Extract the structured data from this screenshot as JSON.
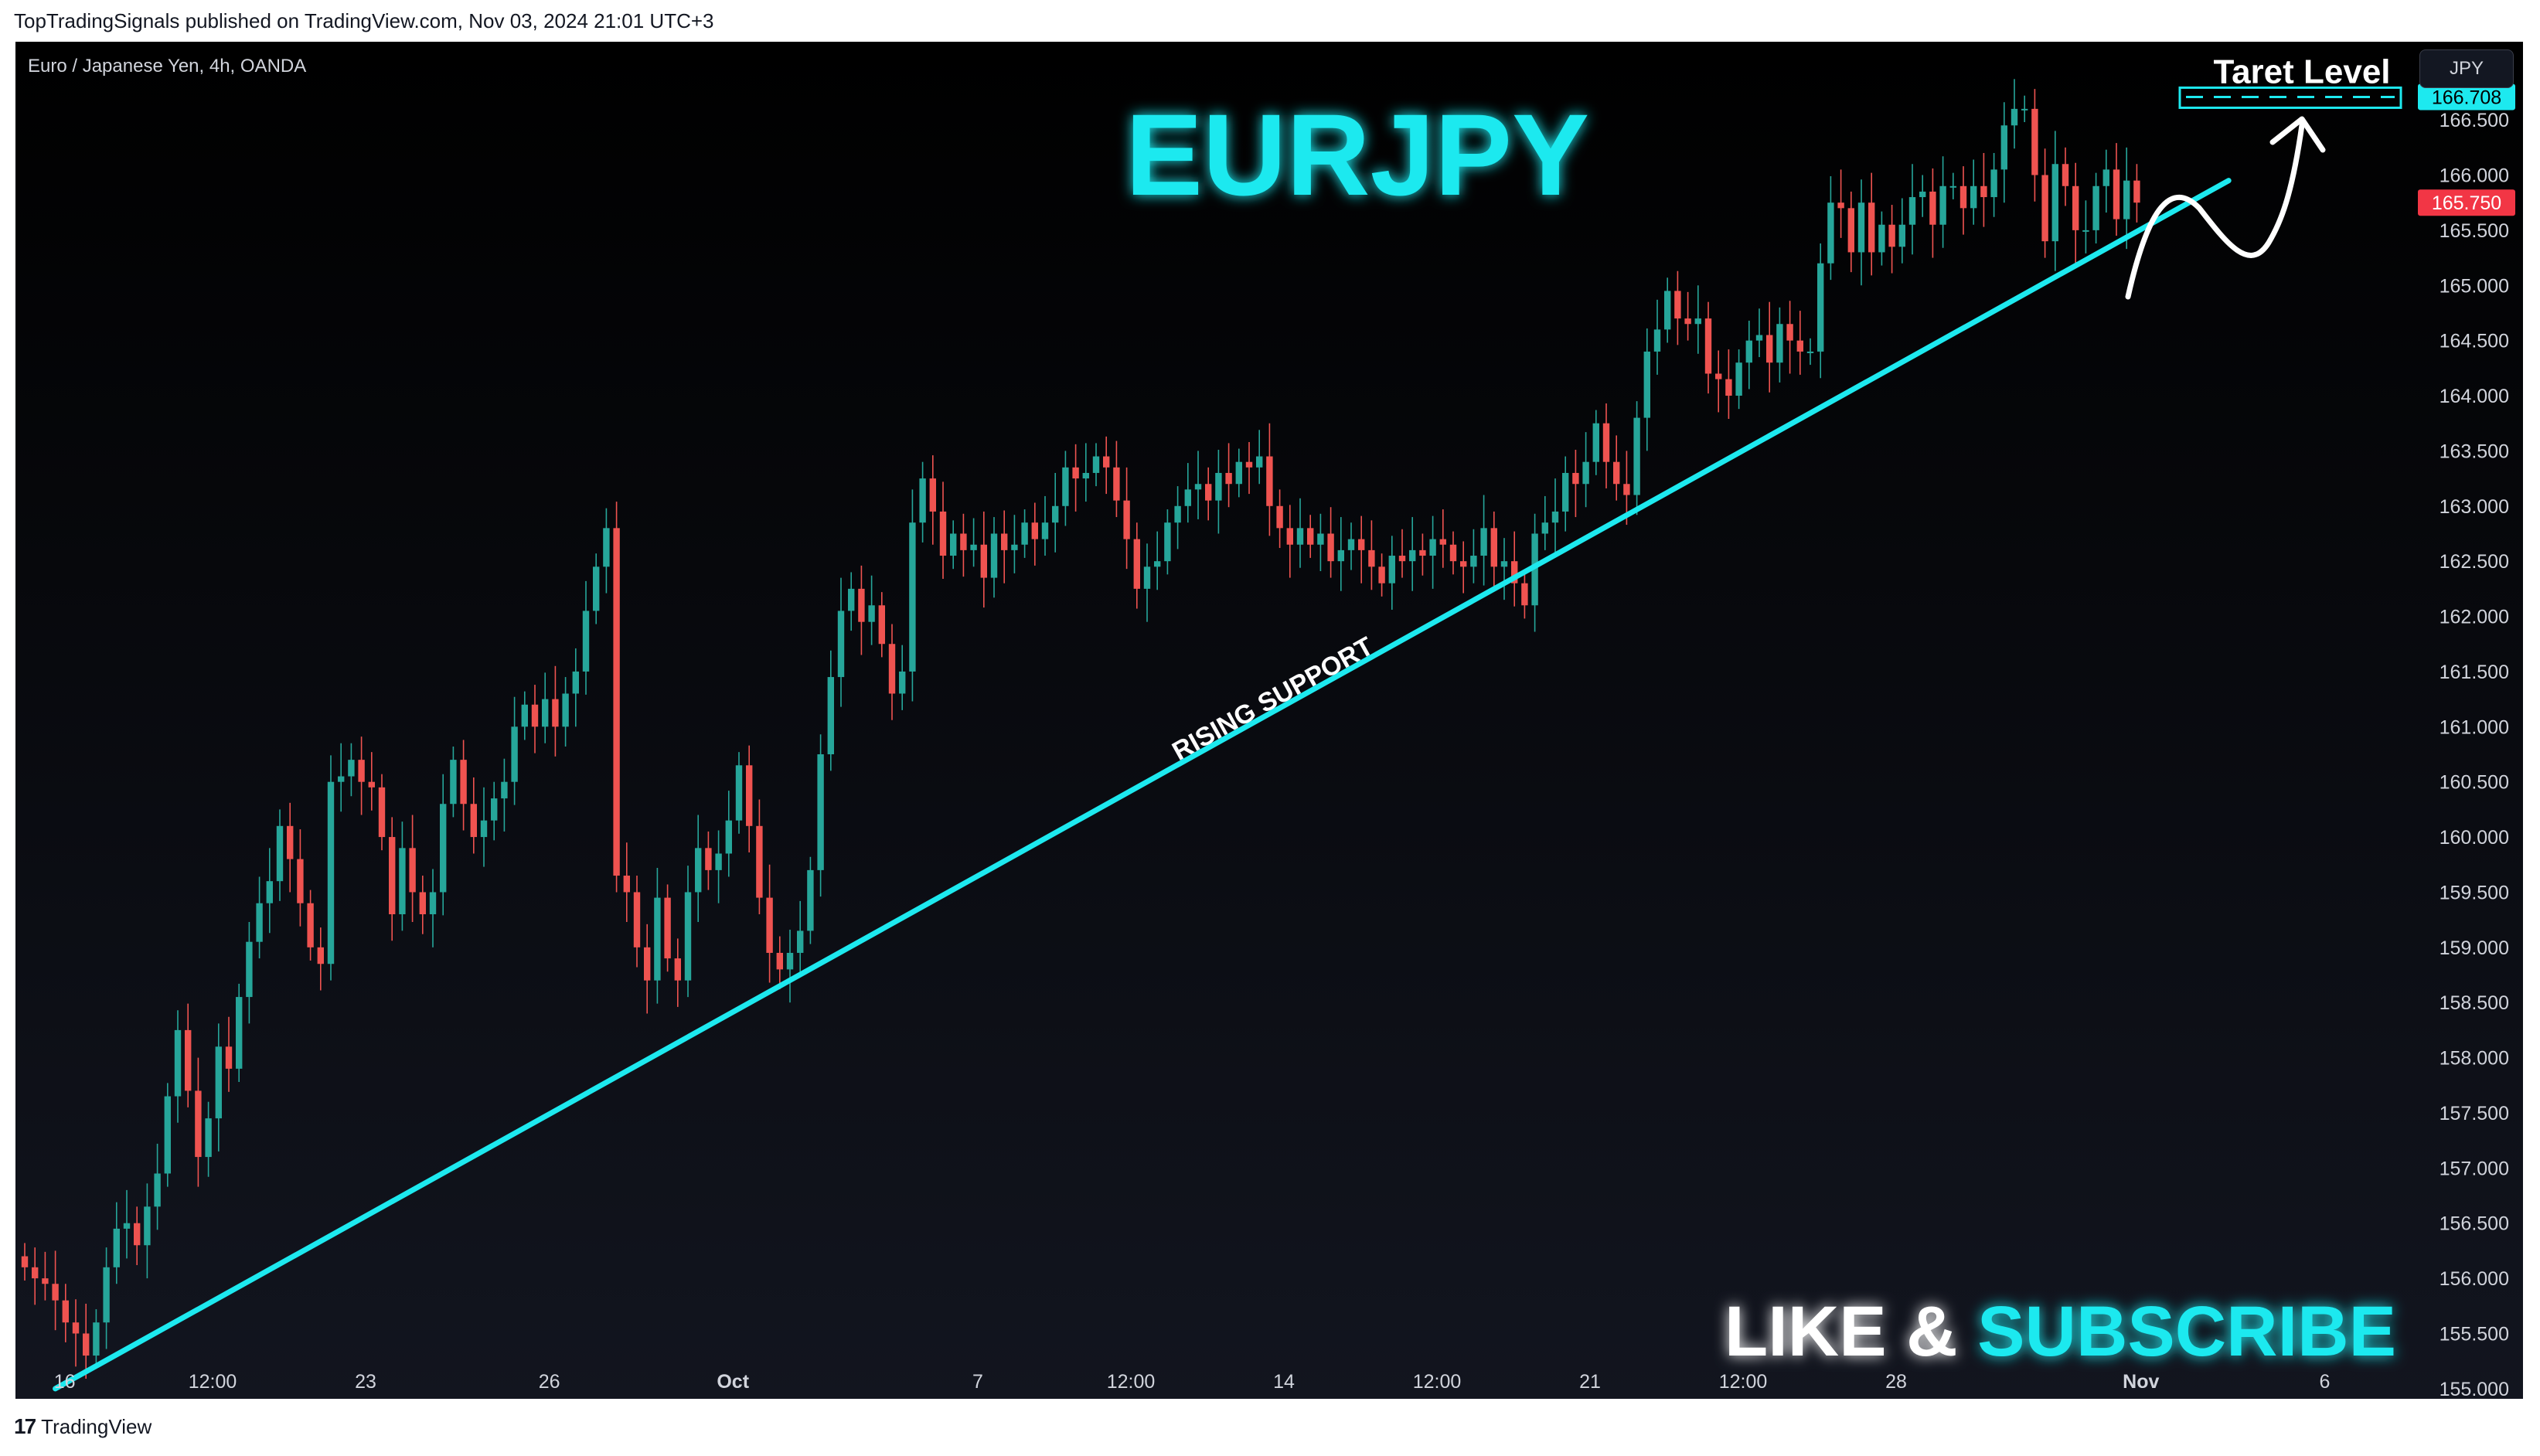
{
  "header": {
    "publisher_line": "TopTradingSignals published on TradingView.com, Nov 03, 2024 21:01 UTC+3"
  },
  "chart_header": {
    "symbol_description": "Euro / Japanese Yen, 4h, OANDA",
    "currency": "JPY"
  },
  "footer": {
    "brand": "TradingView"
  },
  "colors": {
    "up": "#26a69a",
    "down": "#ef5350",
    "accent": "#1de9ef",
    "text": "#d1d4dc",
    "price_tag": "#f23645"
  },
  "annotations": {
    "title": "EURJPY",
    "trendline_label": "RISING SUPPORT",
    "target_label": "Taret Level",
    "cta_like": "LIKE & ",
    "cta_subscribe": "SUBSCRIBE"
  },
  "price_tags": {
    "target": "166.708",
    "last": "165.750"
  },
  "chart_data": {
    "type": "candlestick",
    "title": "EURJPY",
    "symbol": "Euro / Japanese Yen, 4h, OANDA",
    "ylim": [
      154.95,
      167.2
    ],
    "y_ticks": [
      "155.000",
      "155.500",
      "156.000",
      "156.500",
      "157.000",
      "157.500",
      "158.000",
      "158.500",
      "159.000",
      "159.500",
      "160.000",
      "160.500",
      "161.000",
      "161.500",
      "162.000",
      "162.500",
      "163.000",
      "163.500",
      "164.000",
      "164.500",
      "165.000",
      "165.500",
      "166.000",
      "166.500"
    ],
    "x_ticks": [
      {
        "label": "16",
        "bar": 0.5
      },
      {
        "label": "12:00",
        "bar": 15
      },
      {
        "label": "23",
        "bar": 30
      },
      {
        "label": "26",
        "bar": 48
      },
      {
        "label": "Oct",
        "bar": 66
      },
      {
        "label": "7",
        "bar": 90
      },
      {
        "label": "12:00",
        "bar": 105
      },
      {
        "label": "14",
        "bar": 120
      },
      {
        "label": "12:00",
        "bar": 135
      },
      {
        "label": "21",
        "bar": 150
      },
      {
        "label": "12:00",
        "bar": 165
      },
      {
        "label": "28",
        "bar": 180
      },
      {
        "label": "Nov",
        "bar": 204
      },
      {
        "label": "6",
        "bar": 222
      }
    ],
    "closes": [
      156.1,
      156.0,
      155.95,
      155.8,
      155.6,
      155.5,
      155.3,
      155.6,
      156.1,
      156.45,
      156.5,
      156.3,
      156.65,
      156.95,
      157.65,
      158.25,
      157.7,
      157.1,
      157.45,
      158.1,
      157.9,
      158.55,
      159.05,
      159.4,
      159.6,
      160.1,
      159.8,
      159.4,
      159.0,
      158.85,
      160.5,
      160.55,
      160.7,
      160.5,
      160.45,
      160.0,
      159.3,
      159.9,
      159.5,
      159.3,
      159.5,
      160.3,
      160.7,
      160.3,
      160.0,
      160.15,
      160.35,
      160.5,
      161.0,
      161.2,
      161.0,
      161.25,
      161.0,
      161.3,
      161.5,
      162.05,
      162.45,
      162.8,
      159.65,
      159.5,
      159.0,
      158.7,
      159.45,
      158.9,
      158.7,
      159.5,
      159.9,
      159.7,
      159.85,
      160.15,
      160.65,
      160.1,
      159.45,
      158.95,
      158.8,
      158.95,
      159.15,
      159.7,
      160.75,
      161.45,
      162.05,
      162.25,
      161.95,
      162.1,
      161.75,
      161.3,
      161.5,
      162.85,
      163.25,
      162.95,
      162.55,
      162.75,
      162.6,
      162.65,
      162.35,
      162.75,
      162.6,
      162.65,
      162.85,
      162.7,
      162.85,
      163.0,
      163.35,
      163.25,
      163.3,
      163.45,
      163.35,
      163.05,
      162.7,
      162.25,
      162.45,
      162.5,
      162.85,
      163.0,
      163.15,
      163.2,
      163.05,
      163.3,
      163.2,
      163.4,
      163.35,
      163.45,
      163.0,
      162.8,
      162.65,
      162.8,
      162.65,
      162.75,
      162.5,
      162.6,
      162.7,
      162.6,
      162.45,
      162.3,
      162.55,
      162.5,
      162.6,
      162.55,
      162.7,
      162.65,
      162.5,
      162.45,
      162.55,
      162.8,
      162.45,
      162.5,
      162.3,
      162.1,
      162.75,
      162.85,
      162.95,
      163.3,
      163.2,
      163.4,
      163.75,
      163.4,
      163.2,
      163.1,
      163.8,
      164.4,
      164.6,
      164.95,
      164.7,
      164.65,
      164.7,
      164.2,
      164.15,
      164.0,
      164.3,
      164.5,
      164.55,
      164.3,
      164.65,
      164.5,
      164.4,
      164.4,
      165.2,
      165.75,
      165.7,
      165.3,
      165.75,
      165.3,
      165.55,
      165.35,
      165.55,
      165.8,
      165.85,
      165.55,
      165.9,
      165.9,
      165.7,
      165.9,
      165.8,
      166.05,
      166.45,
      166.6,
      166.6,
      166.0,
      165.4,
      166.1,
      165.9,
      165.5,
      165.5,
      165.9,
      166.05,
      165.6,
      165.95,
      165.75
    ],
    "trendline": {
      "label": "RISING SUPPORT",
      "from": {
        "bar": 3,
        "price": 155.0
      },
      "to": {
        "bar": 216,
        "price": 165.95
      }
    },
    "target_level": {
      "label": "Taret Level",
      "price": 166.708
    },
    "last_price": 165.75,
    "grid": false
  }
}
